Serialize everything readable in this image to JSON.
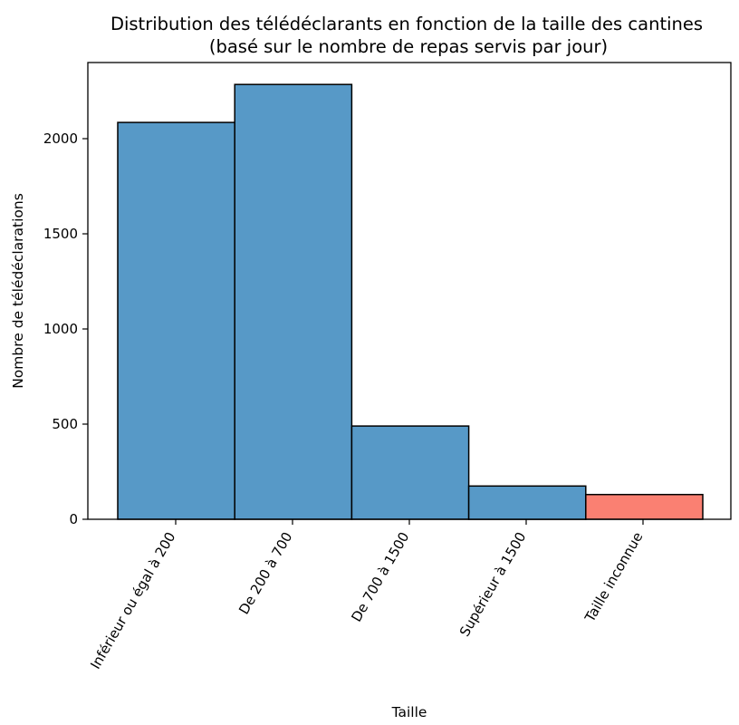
{
  "chart_data": {
    "type": "bar",
    "title": "Distribution des télédéclarants en fonction de la taille des cantines",
    "subtitle": "(basé sur le nombre de repas servis par jour)",
    "xlabel": "Taille",
    "ylabel": "Nombre de télédéclarations",
    "categories": [
      "Inférieur ou égal à 200",
      "De 200 à 700",
      "De 700 à 1500",
      "Supérieur à 1500",
      "Taille inconnue"
    ],
    "values": [
      2085,
      2285,
      490,
      175,
      130
    ],
    "bar_colors": [
      "#5799c7",
      "#5799c7",
      "#5799c7",
      "#5799c7",
      "#fa8072"
    ],
    "edge_color": "#000000",
    "ylim": [
      0,
      2400
    ],
    "yticks": [
      0,
      500,
      1000,
      1500,
      2000
    ],
    "grid": false,
    "legend": "none"
  }
}
